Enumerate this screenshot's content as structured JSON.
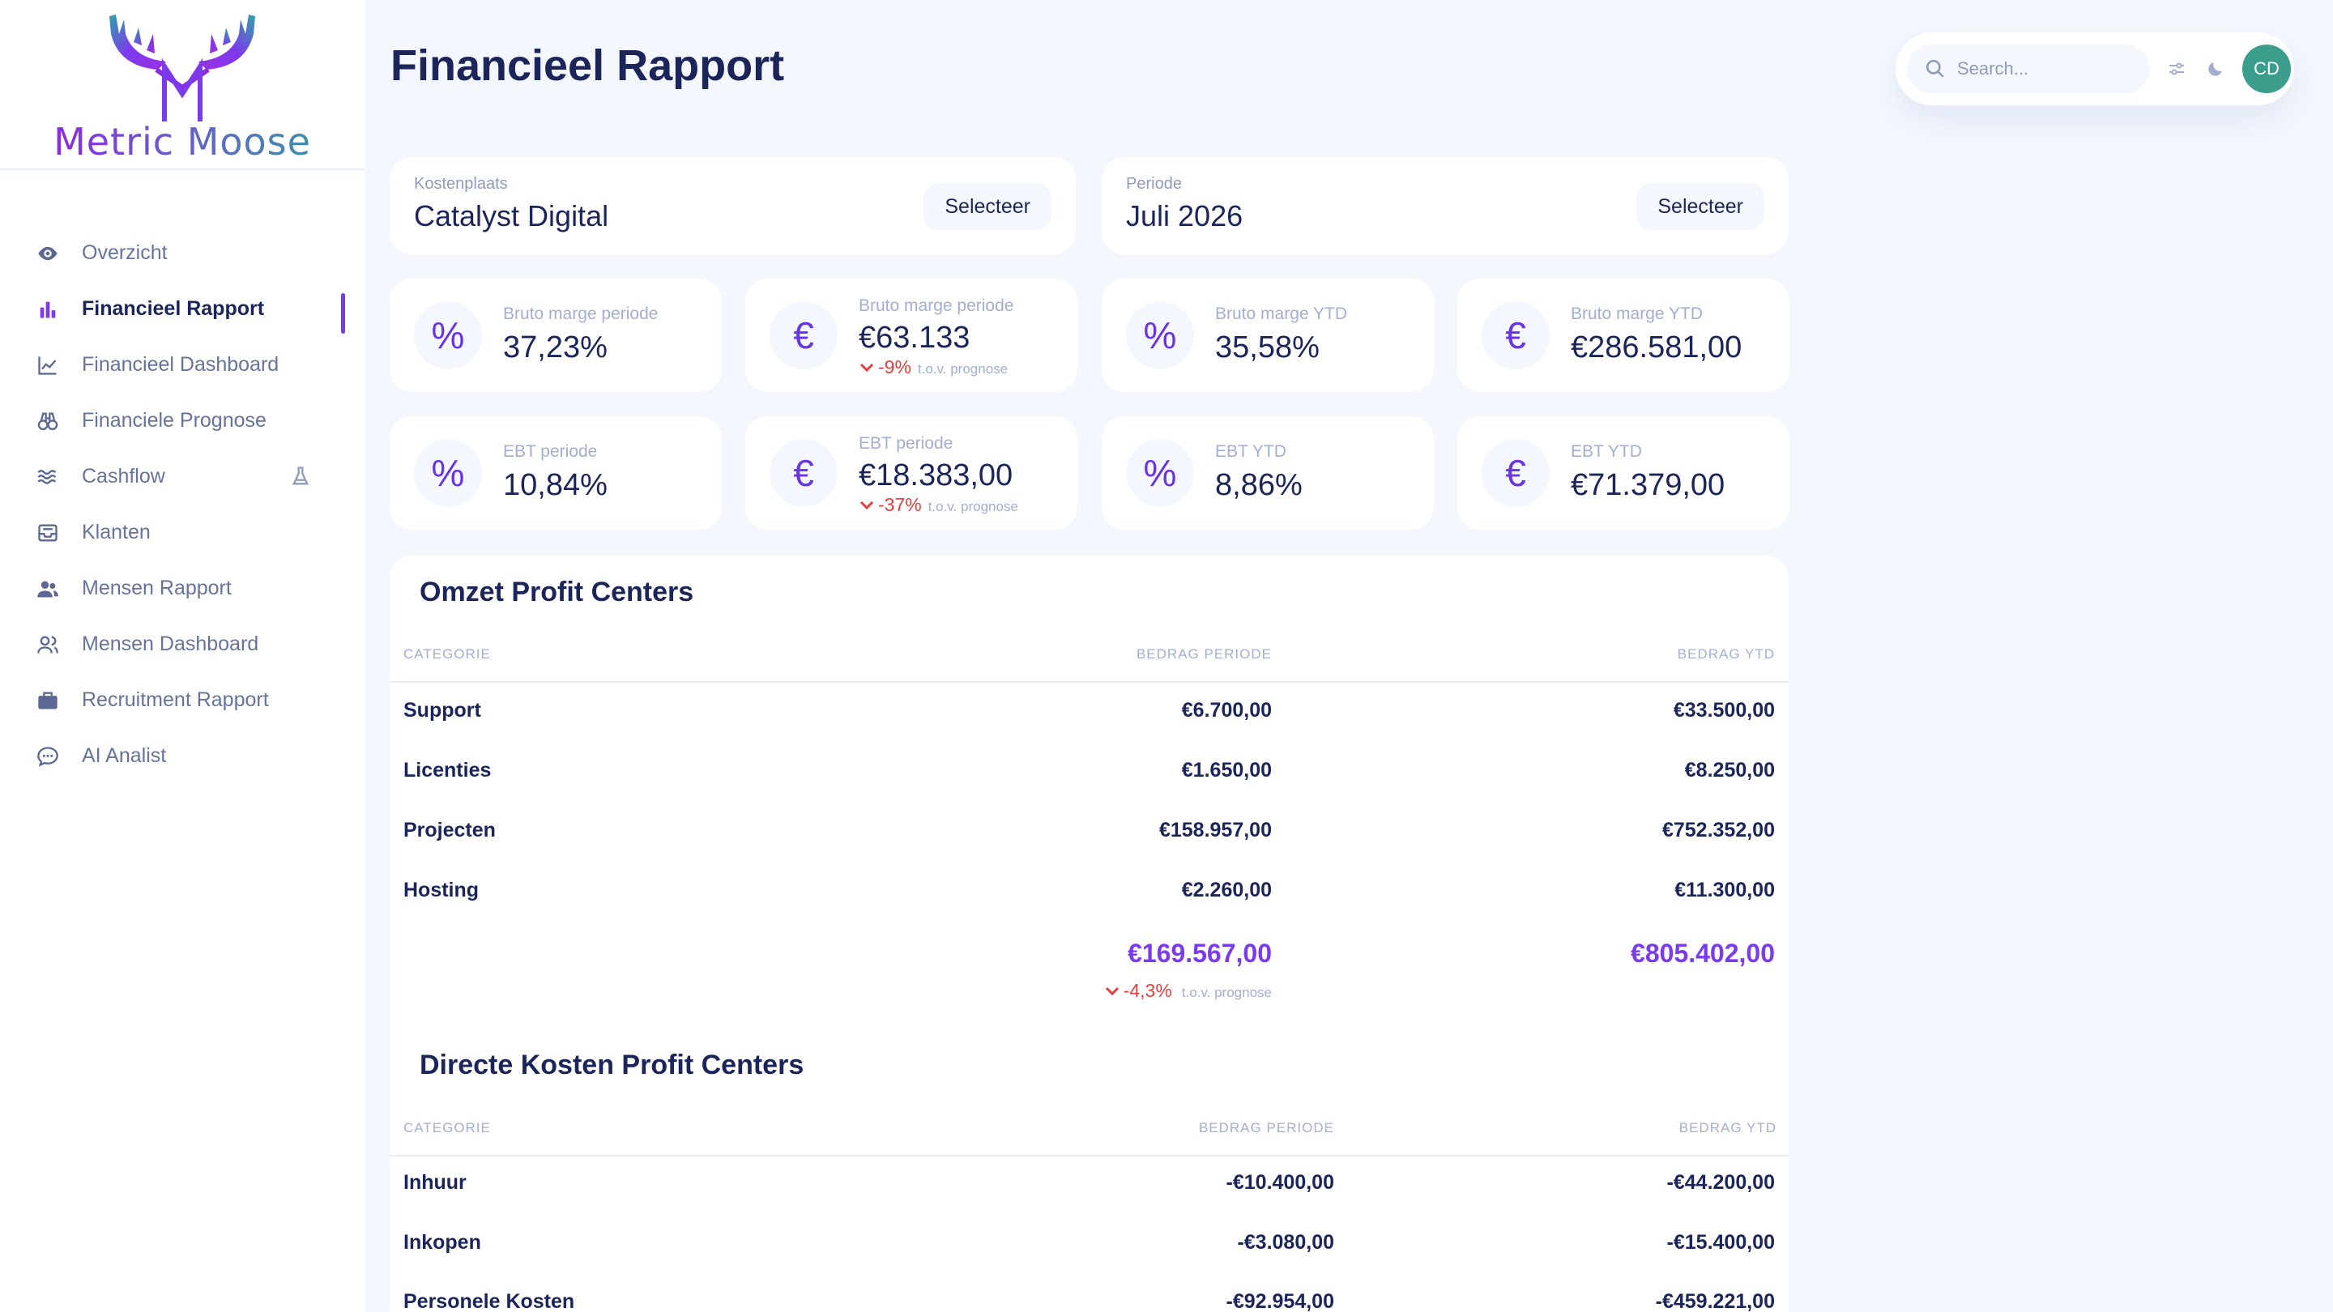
{
  "brand": {
    "name": "Metric Moose",
    "accent": "#7c3aed"
  },
  "sidebar": {
    "items": [
      {
        "label": "Overzicht",
        "icon": "eye-icon",
        "active": false
      },
      {
        "label": "Financieel Rapport",
        "icon": "bar-chart-icon",
        "active": true
      },
      {
        "label": "Financieel Dashboard",
        "icon": "line-chart-icon",
        "active": false
      },
      {
        "label": "Financiele Prognose",
        "icon": "binoculars-icon",
        "active": false
      },
      {
        "label": "Cashflow",
        "icon": "waves-icon",
        "active": false,
        "badge_icon": "flask-icon"
      },
      {
        "label": "Klanten",
        "icon": "inbox-icon",
        "active": false
      },
      {
        "label": "Mensen Rapport",
        "icon": "users-icon",
        "active": false
      },
      {
        "label": "Mensen Dashboard",
        "icon": "users-outline-icon",
        "active": false
      },
      {
        "label": "Recruitment Rapport",
        "icon": "briefcase-icon",
        "active": false
      },
      {
        "label": "AI Analist",
        "icon": "chat-bubble-icon",
        "active": false
      }
    ]
  },
  "header": {
    "title": "Financieel Rapport",
    "search_placeholder": "Search...",
    "avatar_initials": "CD"
  },
  "filters": {
    "cost_center": {
      "label": "Kostenplaats",
      "value": "Catalyst Digital",
      "button": "Selecteer"
    },
    "period": {
      "label": "Periode",
      "value": "Juli 2026",
      "button": "Selecteer"
    }
  },
  "kpis": [
    {
      "label": "Bruto marge periode",
      "value": "37,23%",
      "icon": "percent-icon"
    },
    {
      "label": "Bruto marge periode",
      "value": "€63.133",
      "icon": "euro-icon",
      "delta": "-9%",
      "delta_note": "t.o.v. prognose"
    },
    {
      "label": "Bruto marge YTD",
      "value": "35,58%",
      "icon": "percent-icon"
    },
    {
      "label": "Bruto marge YTD",
      "value": "€286.581,00",
      "icon": "euro-icon"
    },
    {
      "label": "EBT periode",
      "value": "10,84%",
      "icon": "percent-icon"
    },
    {
      "label": "EBT periode",
      "value": "€18.383,00",
      "icon": "euro-icon",
      "delta": "-37%",
      "delta_note": "t.o.v. prognose"
    },
    {
      "label": "EBT YTD",
      "value": "8,86%",
      "icon": "percent-icon"
    },
    {
      "label": "EBT YTD",
      "value": "€71.379,00",
      "icon": "euro-icon"
    }
  ],
  "revenue": {
    "title": "Omzet Profit Centers",
    "columns": [
      "CATEGORIE",
      "BEDRAG PERIODE",
      "BEDRAG YTD"
    ],
    "rows": [
      {
        "category": "Support",
        "period": "€6.700,00",
        "ytd": "€33.500,00"
      },
      {
        "category": "Licenties",
        "period": "€1.650,00",
        "ytd": "€8.250,00"
      },
      {
        "category": "Projecten",
        "period": "€158.957,00",
        "ytd": "€752.352,00"
      },
      {
        "category": "Hosting",
        "period": "€2.260,00",
        "ytd": "€11.300,00"
      }
    ],
    "total_period": "€169.567,00",
    "total_ytd": "€805.402,00",
    "total_delta": "-4,3%",
    "total_delta_note": "t.o.v. prognose"
  },
  "direct_costs": {
    "title": "Directe Kosten Profit Centers",
    "columns": [
      "CATEGORIE",
      "BEDRAG PERIODE",
      "BEDRAG YTD"
    ],
    "rows": [
      {
        "category": "Inhuur",
        "period": "-€10.400,00",
        "ytd": "-€44.200,00"
      },
      {
        "category": "Inkopen",
        "period": "-€3.080,00",
        "ytd": "-€15.400,00"
      },
      {
        "category": "Personele Kosten",
        "period": "-€92.954,00",
        "ytd": "-€459.221,00"
      }
    ]
  }
}
